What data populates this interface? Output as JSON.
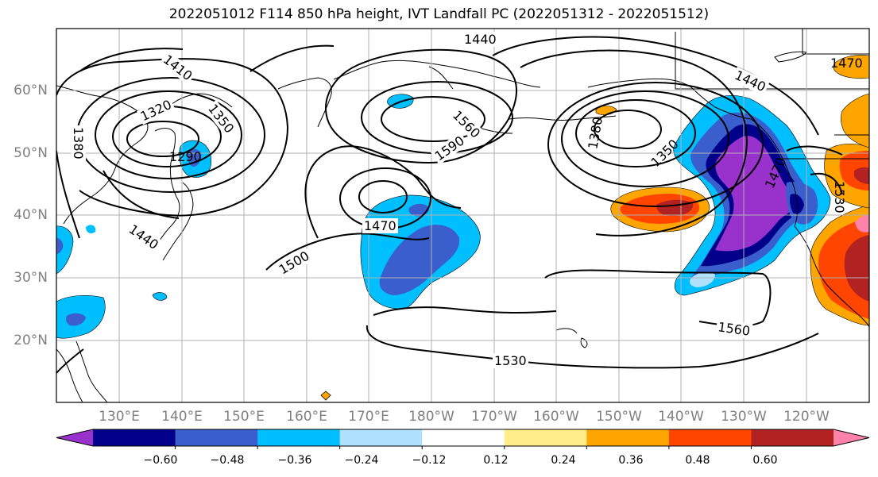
{
  "title": "2022051012 F114 850 hPa height, IVT Landfall PC (2022051312 - 2022051512)",
  "lat_labels": [
    "60°N",
    "50°N",
    "40°N",
    "30°N",
    "20°N"
  ],
  "lon_labels": [
    "130°E",
    "140°E",
    "150°E",
    "160°E",
    "170°E",
    "180°W",
    "170°W",
    "160°W",
    "150°W",
    "140°W",
    "130°W",
    "120°W"
  ],
  "contour_labels": [
    "1410",
    "1440",
    "1440",
    "1320",
    "1350",
    "1380",
    "1290",
    "1440",
    "1380",
    "1350",
    "1560",
    "1590",
    "1470",
    "1500",
    "1470",
    "1530",
    "1560",
    "1530",
    "1470"
  ],
  "colorbar": {
    "ticks": [
      "−0.60",
      "−0.48",
      "−0.36",
      "−0.24",
      "−0.12",
      "0.12",
      "0.24",
      "0.36",
      "0.48",
      "0.60"
    ],
    "colors": [
      "#9932cc",
      "#00008b",
      "#3a5fcd",
      "#00bfff",
      "#b0e2ff",
      "#ffffff",
      "#ffec8b",
      "#ffa500",
      "#ff4500",
      "#b22222",
      "#ff82ab"
    ]
  }
}
